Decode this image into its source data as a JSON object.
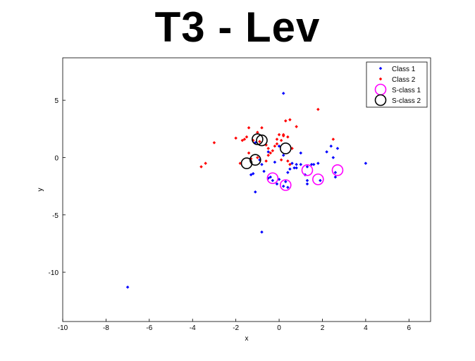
{
  "chart_data": {
    "type": "scatter",
    "title": "T3 - Lev",
    "xlabel": "x",
    "ylabel": "y",
    "xlim": [
      -10,
      7
    ],
    "ylim": [
      -14.3,
      8.7
    ],
    "xticks": [
      -10,
      -8,
      -6,
      -4,
      -2,
      0,
      2,
      4,
      6
    ],
    "yticks": [
      -10,
      -5,
      0,
      5
    ],
    "grid": false,
    "legend_position": "top-right",
    "series": [
      {
        "name": "Class 1",
        "marker": "dot",
        "color": "#0000ff",
        "points": [
          [
            0.2,
            5.6
          ],
          [
            -7.0,
            -11.3
          ],
          [
            -0.8,
            -6.5
          ],
          [
            4.0,
            -0.5
          ],
          [
            2.7,
            0.8
          ],
          [
            2.5,
            0.0
          ],
          [
            2.2,
            0.5
          ],
          [
            2.4,
            1.0
          ],
          [
            1.8,
            -0.5
          ],
          [
            2.6,
            -1.3
          ],
          [
            2.6,
            -1.7
          ],
          [
            1.9,
            -2.0
          ],
          [
            1.5,
            -0.6
          ],
          [
            1.3,
            -0.8
          ],
          [
            1.2,
            -1.5
          ],
          [
            1.3,
            -2.0
          ],
          [
            1.3,
            -2.3
          ],
          [
            1.0,
            -0.6
          ],
          [
            0.8,
            -0.6
          ],
          [
            0.7,
            -0.9
          ],
          [
            0.5,
            -1.0
          ],
          [
            0.4,
            -1.3
          ],
          [
            0.3,
            -2.1
          ],
          [
            0.4,
            -2.6
          ],
          [
            0.2,
            -2.5
          ],
          [
            0.0,
            -1.9
          ],
          [
            -0.1,
            -2.3
          ],
          [
            -0.3,
            -2.0
          ],
          [
            -0.4,
            -1.7
          ],
          [
            -0.5,
            -1.8
          ],
          [
            -0.7,
            -1.2
          ],
          [
            -0.8,
            -0.6
          ],
          [
            -0.9,
            -0.2
          ],
          [
            -1.1,
            -3.0
          ],
          [
            -1.3,
            -1.5
          ],
          [
            -1.2,
            -1.4
          ],
          [
            -0.2,
            -0.4
          ],
          [
            0.6,
            -0.5
          ],
          [
            1.0,
            0.4
          ],
          [
            0.0,
            1.0
          ],
          [
            -0.5,
            0.5
          ],
          [
            -1.1,
            1.3
          ],
          [
            0.2,
            0.2
          ],
          [
            0.8,
            -0.9
          ],
          [
            1.6,
            -0.6
          ]
        ]
      },
      {
        "name": "Class 2",
        "marker": "dot",
        "color": "#ff0000",
        "points": [
          [
            -3.6,
            -0.8
          ],
          [
            -3.4,
            -0.5
          ],
          [
            -3.0,
            1.3
          ],
          [
            -2.0,
            1.7
          ],
          [
            -1.6,
            1.6
          ],
          [
            -1.4,
            2.6
          ],
          [
            -1.5,
            1.8
          ],
          [
            -1.2,
            1.5
          ],
          [
            -1.0,
            2.2
          ],
          [
            -0.8,
            2.6
          ],
          [
            -0.6,
            1.1
          ],
          [
            -0.5,
            0.8
          ],
          [
            -0.4,
            0.4
          ],
          [
            -0.3,
            0.6
          ],
          [
            -0.2,
            1.0
          ],
          [
            -0.1,
            1.6
          ],
          [
            0.0,
            2.0
          ],
          [
            0.1,
            1.5
          ],
          [
            0.2,
            2.0
          ],
          [
            0.3,
            3.2
          ],
          [
            0.5,
            3.3
          ],
          [
            0.6,
            0.8
          ],
          [
            0.4,
            -0.3
          ],
          [
            0.5,
            -0.6
          ],
          [
            0.1,
            -0.2
          ],
          [
            -0.1,
            1.2
          ],
          [
            -0.6,
            -0.3
          ],
          [
            -1.0,
            0.0
          ],
          [
            -1.4,
            0.4
          ],
          [
            -1.3,
            -0.1
          ],
          [
            -1.7,
            1.5
          ],
          [
            -1.8,
            -0.5
          ],
          [
            0.8,
            2.7
          ],
          [
            1.8,
            4.2
          ],
          [
            2.5,
            1.6
          ],
          [
            -0.9,
            1.4
          ],
          [
            0.2,
            1.9
          ],
          [
            0.4,
            1.8
          ],
          [
            -0.5,
            0.2
          ]
        ]
      },
      {
        "name": "S-class 1",
        "marker": "circle",
        "color": "#ff00ff",
        "points": [
          [
            -0.3,
            -1.8
          ],
          [
            0.3,
            -2.4
          ],
          [
            1.3,
            -1.1
          ],
          [
            1.8,
            -1.9
          ],
          [
            2.7,
            -1.1
          ]
        ]
      },
      {
        "name": "S-class 2",
        "marker": "circle",
        "color": "#000000",
        "points": [
          [
            -1.0,
            1.6
          ],
          [
            -0.8,
            1.5
          ],
          [
            0.3,
            0.8
          ],
          [
            -1.1,
            -0.2
          ],
          [
            -1.5,
            -0.5
          ]
        ]
      }
    ]
  }
}
